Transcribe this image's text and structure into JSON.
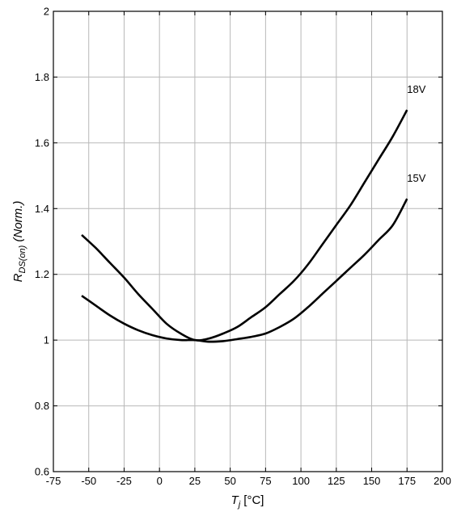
{
  "chart_data": {
    "type": "line",
    "xlabel": {
      "main": "T",
      "sub": "j",
      "unit": " [°C]"
    },
    "ylabel": {
      "main": "R",
      "sub": "DS(on)",
      "unit": " (Norm.)"
    },
    "xlim": [
      -75,
      200
    ],
    "ylim": [
      0.6,
      2
    ],
    "xticks": [
      -75,
      -50,
      -25,
      0,
      25,
      50,
      75,
      100,
      125,
      150,
      175,
      200
    ],
    "xtick_labels": [
      "-75",
      "-50",
      "-25",
      "0",
      "25",
      "50",
      "75",
      "100",
      "125",
      "150",
      "175",
      "200"
    ],
    "yticks": [
      0.6,
      0.8,
      1,
      1.2,
      1.4,
      1.6,
      1.8,
      2
    ],
    "ytick_labels": [
      "0.6",
      "0.8",
      "1",
      "1.2",
      "1.4",
      "1.6",
      "1.8",
      "2"
    ],
    "grid": true,
    "series": [
      {
        "name": "18V",
        "x": [
          -55,
          -45,
          -35,
          -25,
          -15,
          -5,
          5,
          15,
          25,
          35,
          45,
          55,
          65,
          75,
          85,
          95,
          105,
          115,
          125,
          135,
          145,
          155,
          165,
          175
        ],
        "y": [
          1.32,
          1.28,
          1.235,
          1.19,
          1.14,
          1.095,
          1.05,
          1.02,
          1.0,
          1.005,
          1.02,
          1.04,
          1.07,
          1.1,
          1.14,
          1.18,
          1.23,
          1.29,
          1.35,
          1.41,
          1.48,
          1.55,
          1.62,
          1.7
        ]
      },
      {
        "name": "15V",
        "x": [
          -55,
          -45,
          -35,
          -25,
          -15,
          -5,
          5,
          15,
          25,
          35,
          45,
          55,
          65,
          75,
          85,
          95,
          105,
          115,
          125,
          135,
          145,
          155,
          165,
          175
        ],
        "y": [
          1.135,
          1.105,
          1.075,
          1.05,
          1.03,
          1.015,
          1.005,
          1.0,
          1.0,
          0.995,
          0.997,
          1.003,
          1.01,
          1.02,
          1.04,
          1.065,
          1.1,
          1.14,
          1.18,
          1.22,
          1.26,
          1.305,
          1.35,
          1.43
        ]
      }
    ],
    "stroke_color": "#000000",
    "grid_color": "#b8b8b8"
  }
}
